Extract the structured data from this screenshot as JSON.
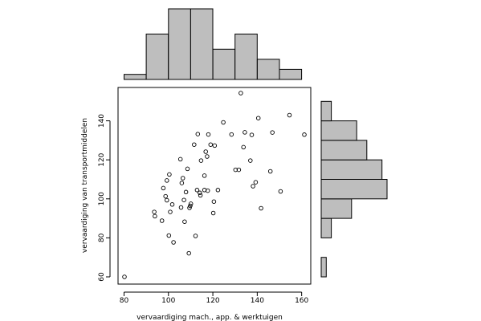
{
  "chart_data": [
    {
      "type": "scatter",
      "xlabel": "vervaardiging mach., app. & werktuigen",
      "ylabel": "vervaardiging van transportmiddelen",
      "xlim": [
        77.3,
        164.1
      ],
      "ylim": [
        56.3,
        157.1
      ],
      "xticks": [
        80,
        100,
        120,
        140,
        160
      ],
      "yticks": [
        60,
        80,
        100,
        120,
        140
      ],
      "x": [
        80.2,
        93.9,
        93.6,
        97.1,
        97.7,
        98.7,
        99.3,
        99.3,
        100.2,
        100.4,
        100.8,
        101.7,
        102.3,
        105.4,
        105.7,
        106.0,
        106.5,
        107.0,
        107.3,
        107.9,
        108.6,
        109.2,
        109.5,
        109.8,
        110.1,
        111.6,
        112.2,
        112.9,
        113.2,
        114.1,
        114.4,
        114.7,
        116.2,
        116.2,
        116.8,
        117.4,
        117.7,
        118.0,
        119.0,
        120.2,
        120.5,
        120.8,
        122.3,
        124.7,
        128.4,
        130.2,
        131.7,
        132.6,
        133.8,
        134.4,
        136.9,
        137.5,
        138.1,
        139.3,
        140.5,
        141.7,
        145.9,
        146.8,
        150.5,
        154.5,
        161.2
      ],
      "y": [
        60.0,
        91.1,
        93.3,
        88.8,
        105.5,
        101.3,
        109.4,
        99.3,
        81.2,
        112.5,
        93.3,
        97.1,
        77.7,
        120.3,
        95.6,
        108.1,
        110.6,
        99.4,
        88.3,
        103.5,
        115.4,
        72.1,
        95.4,
        96.4,
        97.5,
        127.8,
        81.0,
        104.5,
        133.2,
        103.1,
        101.8,
        119.6,
        104.5,
        111.9,
        124.2,
        121.7,
        104.2,
        133.0,
        127.8,
        92.7,
        98.6,
        127.3,
        104.5,
        139.2,
        133.0,
        114.9,
        114.9,
        154.2,
        126.5,
        134.1,
        119.6,
        132.8,
        106.5,
        108.5,
        141.4,
        95.2,
        114.1,
        134.0,
        103.8,
        142.9,
        132.9
      ]
    },
    {
      "type": "bar",
      "orientation": "vertical",
      "bin_edges": [
        80,
        90,
        100,
        110,
        120,
        130,
        140,
        150,
        160
      ],
      "counts": [
        1,
        9,
        14,
        14,
        6,
        9,
        4,
        2,
        1
      ]
    },
    {
      "type": "bar",
      "orientation": "horizontal",
      "bin_edges": [
        60,
        70,
        80,
        90,
        100,
        110,
        120,
        130,
        140,
        150
      ],
      "counts": [
        1,
        0,
        2,
        6,
        13,
        12,
        9,
        7,
        2,
        1
      ]
    }
  ]
}
